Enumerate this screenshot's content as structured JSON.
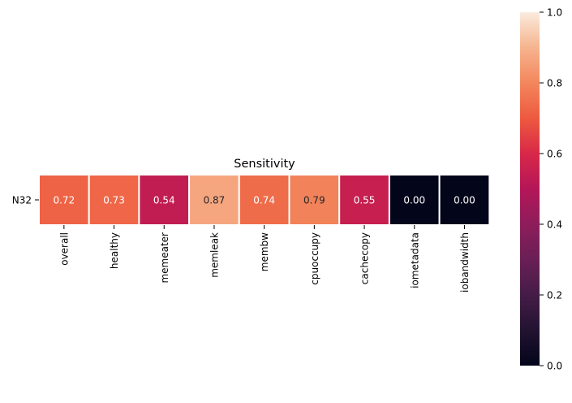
{
  "chart_data": {
    "type": "heatmap",
    "title": "Sensitivity",
    "rows": [
      "N32"
    ],
    "columns": [
      "overall",
      "healthy",
      "memeater",
      "memleak",
      "membw",
      "cpuoccupy",
      "cachecopy",
      "iometadata",
      "iobandwidth"
    ],
    "values": [
      [
        0.72,
        0.73,
        0.54,
        0.87,
        0.74,
        0.79,
        0.55,
        0.0,
        0.0
      ]
    ],
    "value_labels": [
      [
        "0.72",
        "0.73",
        "0.54",
        "0.87",
        "0.74",
        "0.79",
        "0.55",
        "0.00",
        "0.00"
      ]
    ],
    "colorbar": {
      "range": [
        0,
        1
      ],
      "ticks": [
        "0.0",
        "0.2",
        "0.4",
        "0.6",
        "0.8",
        "1.0"
      ],
      "colormap": "rocket"
    },
    "colors": {
      "annotation_light": "#ffffff",
      "annotation_dark": "#262626",
      "cell_border": "#ffffff",
      "axis": "#000000"
    }
  }
}
